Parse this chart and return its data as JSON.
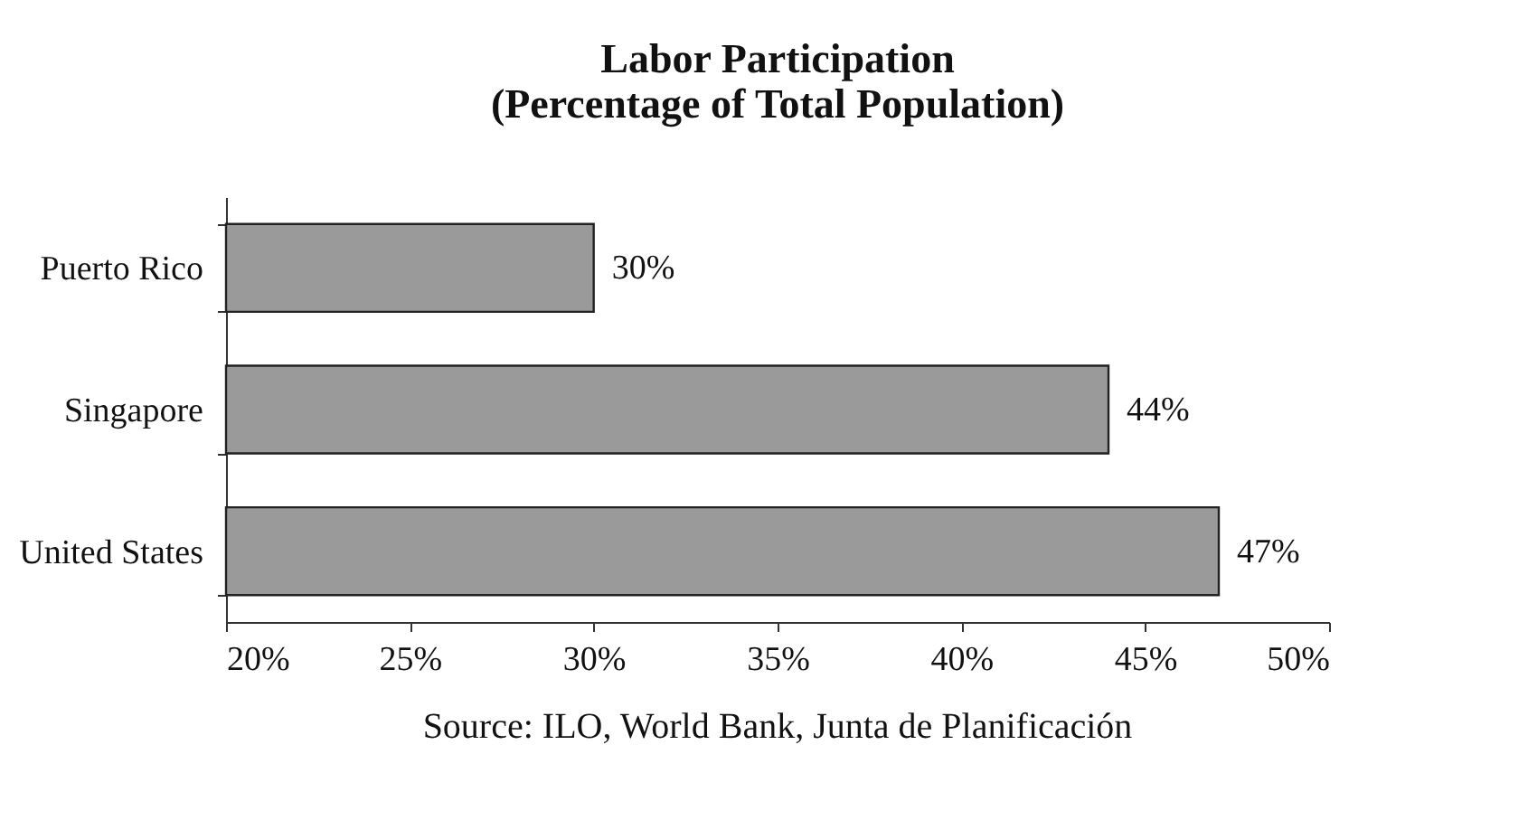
{
  "chart_data": {
    "type": "bar",
    "orientation": "horizontal",
    "title": [
      "Labor Participation",
      "(Percentage of Total Population)"
    ],
    "categories": [
      "Puerto Rico",
      "Singapore",
      "United States"
    ],
    "values": [
      30,
      44,
      47
    ],
    "value_labels": [
      "30%",
      "44%",
      "47%"
    ],
    "color": "#9a9a9a",
    "xlim": [
      20,
      50
    ],
    "xticks": [
      {
        "value": 20,
        "label": "20%"
      },
      {
        "value": 25,
        "label": "25%"
      },
      {
        "value": 30,
        "label": "30%"
      },
      {
        "value": 35,
        "label": "35%"
      },
      {
        "value": 40,
        "label": "40%"
      },
      {
        "value": 45,
        "label": "45%"
      },
      {
        "value": 50,
        "label": "50%"
      }
    ],
    "grid": false,
    "annotations": [
      "Source: ILO, World Bank, Junta de Planificación"
    ]
  }
}
